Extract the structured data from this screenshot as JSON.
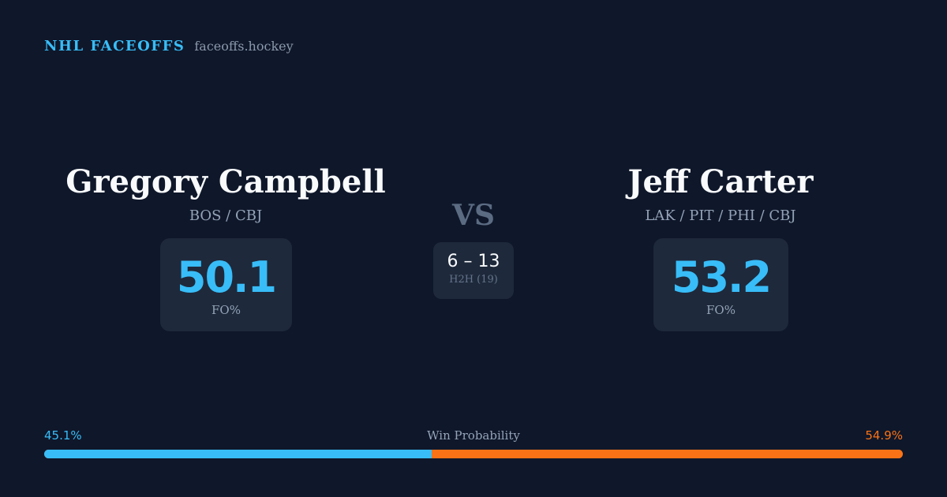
{
  "header": {
    "brand": "NHL FACEOFFS",
    "domain": "faceoffs.hockey"
  },
  "player1": {
    "name": "Gregory Campbell",
    "teams": "BOS / CBJ",
    "fo_pct": "50.1",
    "fo_label": "FO%"
  },
  "player2": {
    "name": "Jeff Carter",
    "teams": "LAK / PIT / PHI / CBJ",
    "fo_pct": "53.2",
    "fo_label": "FO%"
  },
  "matchup": {
    "vs": "VS",
    "h2h_score": "6 – 13",
    "h2h_label": "H2H (19)"
  },
  "win_probability": {
    "title": "Win Probability",
    "left_text": "45.1%",
    "right_text": "54.9%",
    "left_value": 45.1,
    "right_value": 54.9,
    "left_color": "#38bdf8",
    "right_color": "#f97316"
  }
}
